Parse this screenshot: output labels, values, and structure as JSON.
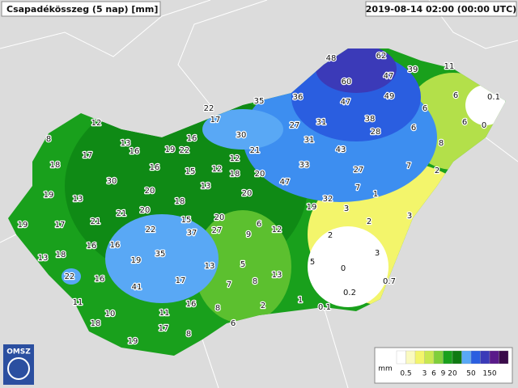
{
  "header": {
    "title": "Csapadékösszeg (5 nap) [mm]",
    "timestamp": "2019-08-14 02:00 (00:00 UTC)"
  },
  "stations": [
    8,
    12,
    13,
    16,
    19,
    22,
    16,
    17,
    18,
    16,
    15,
    12,
    12,
    18,
    22,
    17,
    35,
    36,
    48,
    62,
    60,
    47,
    39,
    11,
    49,
    47,
    6,
    0.1,
    6,
    6,
    0,
    38,
    28,
    27,
    31,
    30,
    31,
    43,
    6,
    8,
    21,
    33,
    27,
    7,
    2,
    19,
    13,
    30,
    20,
    13,
    20,
    20,
    47,
    7,
    1,
    18,
    32,
    19,
    3,
    3,
    2,
    21,
    21,
    20,
    15,
    20,
    6,
    17,
    19,
    22,
    37,
    27,
    9,
    12,
    2,
    16,
    16,
    13,
    18,
    35,
    19,
    5,
    3,
    13,
    5,
    0,
    22,
    16,
    17,
    13,
    7,
    8,
    0.7,
    41,
    0.2,
    11,
    16,
    1,
    2,
    0.1,
    8,
    11,
    10,
    18,
    17,
    6,
    8,
    19
  ],
  "legend": {
    "unit": "mm",
    "ticks": [
      0.5,
      3,
      6,
      9,
      20,
      50,
      150
    ]
  },
  "logo": "OMSZ"
}
